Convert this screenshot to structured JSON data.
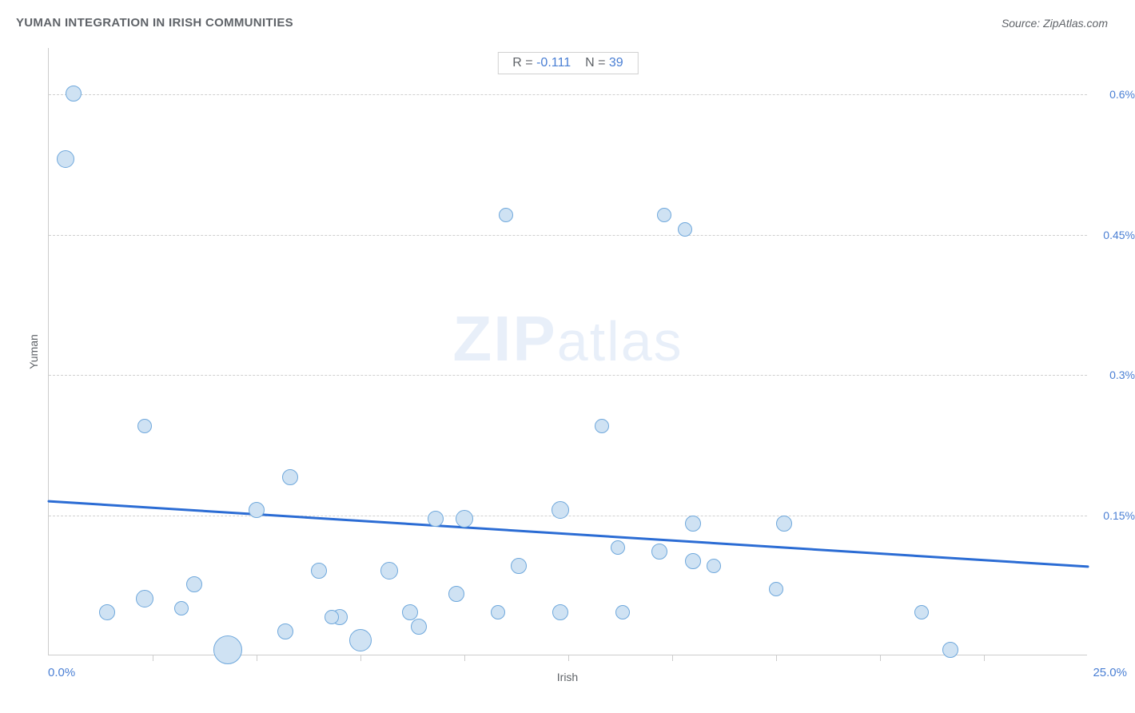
{
  "header": {
    "title": "YUMAN INTEGRATION IN IRISH COMMUNITIES",
    "source": "Source: ZipAtlas.com"
  },
  "chart": {
    "type": "scatter",
    "xlabel": "Irish",
    "ylabel": "Yuman",
    "xlim": [
      0,
      25
    ],
    "ylim": [
      0,
      0.65
    ],
    "x_min_label": "0.0%",
    "x_max_label": "25.0%",
    "y_ticks": [
      0.15,
      0.3,
      0.45,
      0.6
    ],
    "y_tick_labels": [
      "0.15%",
      "0.3%",
      "0.45%",
      "0.6%"
    ],
    "x_minor_ticks": [
      2.5,
      5.0,
      7.5,
      10.0,
      12.5,
      15.0,
      17.5,
      20.0,
      22.5
    ],
    "grid_color": "#d0d0d0",
    "background_color": "#ffffff",
    "point_fill": "#cfe2f3",
    "point_stroke": "#6fa8dc",
    "trend_color": "#2b6cd4",
    "trend_width": 3,
    "trend_y_at_x0": 0.165,
    "trend_y_at_xmax": 0.095,
    "stats": {
      "r_label": "R =",
      "r_value": "-0.111",
      "n_label": "N =",
      "n_value": "39"
    },
    "watermark_bold": "ZIP",
    "watermark_light": "atlas",
    "points": [
      {
        "x": 0.6,
        "y": 0.6,
        "r": 10
      },
      {
        "x": 0.4,
        "y": 0.53,
        "r": 11
      },
      {
        "x": 11.0,
        "y": 0.47,
        "r": 9
      },
      {
        "x": 14.8,
        "y": 0.47,
        "r": 9
      },
      {
        "x": 15.3,
        "y": 0.455,
        "r": 9
      },
      {
        "x": 2.3,
        "y": 0.245,
        "r": 9
      },
      {
        "x": 13.3,
        "y": 0.245,
        "r": 9
      },
      {
        "x": 5.8,
        "y": 0.19,
        "r": 10
      },
      {
        "x": 5.0,
        "y": 0.155,
        "r": 10
      },
      {
        "x": 9.3,
        "y": 0.145,
        "r": 10
      },
      {
        "x": 10.0,
        "y": 0.145,
        "r": 11
      },
      {
        "x": 12.3,
        "y": 0.155,
        "r": 11
      },
      {
        "x": 15.5,
        "y": 0.14,
        "r": 10
      },
      {
        "x": 17.7,
        "y": 0.14,
        "r": 10
      },
      {
        "x": 13.7,
        "y": 0.115,
        "r": 9
      },
      {
        "x": 14.7,
        "y": 0.11,
        "r": 10
      },
      {
        "x": 16.0,
        "y": 0.095,
        "r": 9
      },
      {
        "x": 15.5,
        "y": 0.1,
        "r": 10
      },
      {
        "x": 11.3,
        "y": 0.095,
        "r": 10
      },
      {
        "x": 6.5,
        "y": 0.09,
        "r": 10
      },
      {
        "x": 8.2,
        "y": 0.09,
        "r": 11
      },
      {
        "x": 3.5,
        "y": 0.075,
        "r": 10
      },
      {
        "x": 9.8,
        "y": 0.065,
        "r": 10
      },
      {
        "x": 2.3,
        "y": 0.06,
        "r": 11
      },
      {
        "x": 17.5,
        "y": 0.07,
        "r": 9
      },
      {
        "x": 21.0,
        "y": 0.045,
        "r": 9
      },
      {
        "x": 13.8,
        "y": 0.045,
        "r": 9
      },
      {
        "x": 12.3,
        "y": 0.045,
        "r": 10
      },
      {
        "x": 10.8,
        "y": 0.045,
        "r": 9
      },
      {
        "x": 8.7,
        "y": 0.045,
        "r": 10
      },
      {
        "x": 8.9,
        "y": 0.03,
        "r": 10
      },
      {
        "x": 7.0,
        "y": 0.04,
        "r": 10
      },
      {
        "x": 6.8,
        "y": 0.04,
        "r": 9
      },
      {
        "x": 5.7,
        "y": 0.025,
        "r": 10
      },
      {
        "x": 3.2,
        "y": 0.05,
        "r": 9
      },
      {
        "x": 1.4,
        "y": 0.045,
        "r": 10
      },
      {
        "x": 4.3,
        "y": 0.005,
        "r": 18
      },
      {
        "x": 7.5,
        "y": 0.015,
        "r": 14
      },
      {
        "x": 21.7,
        "y": 0.005,
        "r": 10
      }
    ]
  }
}
